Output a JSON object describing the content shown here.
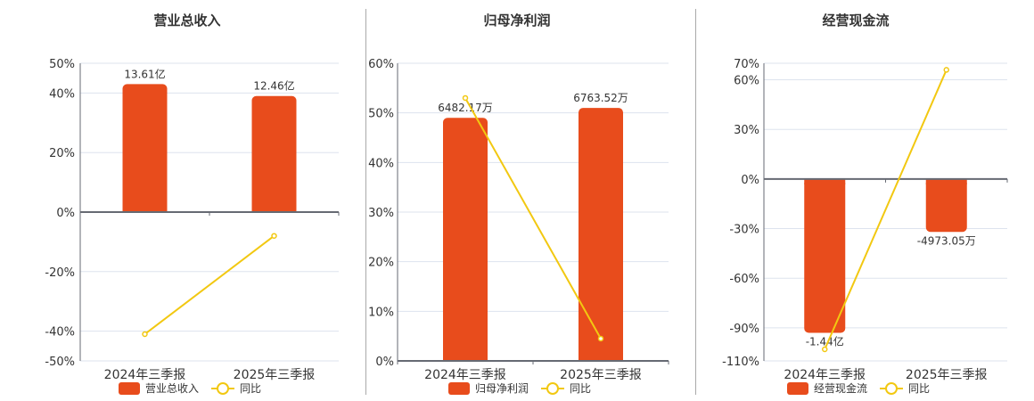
{
  "colors": {
    "bar": "#e84c1c",
    "line": "#f2c811",
    "grid": "#dde3ee",
    "axis": "#666a73"
  },
  "legend": {
    "line_label": "同比"
  },
  "chart_data": [
    {
      "type": "bar+line",
      "title": "营业总收入",
      "categories": [
        "2024年三季报",
        "2025年三季报"
      ],
      "series": [
        {
          "name": "营业总收入",
          "type": "bar",
          "values": [
            43,
            39
          ],
          "labels": [
            "13.61亿",
            "12.46亿"
          ]
        },
        {
          "name": "同比",
          "type": "line",
          "values": [
            -41,
            -8
          ]
        }
      ],
      "yticks": [
        "50%",
        "40%",
        "20%",
        "0%",
        "-20%",
        "-40%",
        "-50%"
      ],
      "ylim": [
        -50,
        50
      ],
      "grid": true,
      "legend_position": "bottom"
    },
    {
      "type": "bar+line",
      "title": "归母净利润",
      "categories": [
        "2024年三季报",
        "2025年三季报"
      ],
      "series": [
        {
          "name": "归母净利润",
          "type": "bar",
          "values": [
            49,
            51
          ],
          "labels": [
            "6482.17万",
            "6763.52万"
          ]
        },
        {
          "name": "同比",
          "type": "line",
          "values": [
            53,
            4.5
          ]
        }
      ],
      "yticks": [
        "60%",
        "50%",
        "40%",
        "30%",
        "20%",
        "10%",
        "0%"
      ],
      "ylim": [
        0,
        60
      ],
      "grid": true,
      "legend_position": "bottom"
    },
    {
      "type": "bar+line",
      "title": "经营现金流",
      "categories": [
        "2024年三季报",
        "2025年三季报"
      ],
      "series": [
        {
          "name": "经营现金流",
          "type": "bar",
          "values": [
            -93,
            -32
          ],
          "labels": [
            "-1.44亿",
            "-4973.05万"
          ]
        },
        {
          "name": "同比",
          "type": "line",
          "values": [
            -103,
            66
          ]
        }
      ],
      "yticks": [
        "70%",
        "60%",
        "30%",
        "0%",
        "-30%",
        "-60%",
        "-90%",
        "-110%"
      ],
      "ylim": [
        -110,
        70
      ],
      "grid": true,
      "legend_position": "bottom"
    }
  ]
}
